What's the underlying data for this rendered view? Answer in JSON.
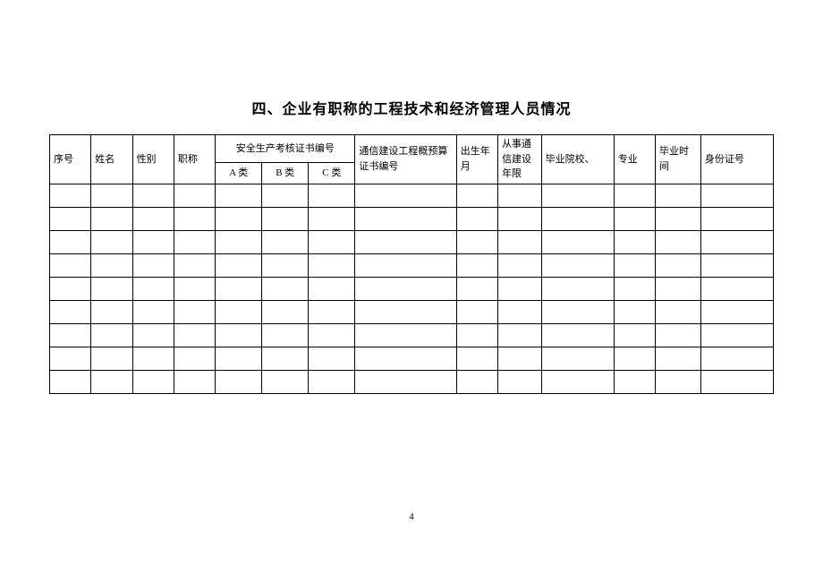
{
  "title": "四、企业有职称的工程技术和经济管理人员情况",
  "columns": {
    "seq": "序号",
    "name": "姓名",
    "gender": "性别",
    "title": "职称",
    "safety_group": "安全生产考核证书编号",
    "safety_a": "A 类",
    "safety_b": "B 类",
    "safety_c": "C 类",
    "budget_cert": "通信建设工程概预算证书编号",
    "birth": "出生年月",
    "work_years": "从事通信建设年限",
    "school": "毕业院校、",
    "major": "专业",
    "grad_time": "毕业时间",
    "id_number": "身份证号"
  },
  "rows": [
    {
      "seq": "",
      "name": "",
      "gender": "",
      "title": "",
      "safety_a": "",
      "safety_b": "",
      "safety_c": "",
      "budget_cert": "",
      "birth": "",
      "work_years": "",
      "school": "",
      "major": "",
      "grad_time": "",
      "id_number": ""
    },
    {
      "seq": "",
      "name": "",
      "gender": "",
      "title": "",
      "safety_a": "",
      "safety_b": "",
      "safety_c": "",
      "budget_cert": "",
      "birth": "",
      "work_years": "",
      "school": "",
      "major": "",
      "grad_time": "",
      "id_number": ""
    },
    {
      "seq": "",
      "name": "",
      "gender": "",
      "title": "",
      "safety_a": "",
      "safety_b": "",
      "safety_c": "",
      "budget_cert": "",
      "birth": "",
      "work_years": "",
      "school": "",
      "major": "",
      "grad_time": "",
      "id_number": ""
    },
    {
      "seq": "",
      "name": "",
      "gender": "",
      "title": "",
      "safety_a": "",
      "safety_b": "",
      "safety_c": "",
      "budget_cert": "",
      "birth": "",
      "work_years": "",
      "school": "",
      "major": "",
      "grad_time": "",
      "id_number": ""
    },
    {
      "seq": "",
      "name": "",
      "gender": "",
      "title": "",
      "safety_a": "",
      "safety_b": "",
      "safety_c": "",
      "budget_cert": "",
      "birth": "",
      "work_years": "",
      "school": "",
      "major": "",
      "grad_time": "",
      "id_number": ""
    },
    {
      "seq": "",
      "name": "",
      "gender": "",
      "title": "",
      "safety_a": "",
      "safety_b": "",
      "safety_c": "",
      "budget_cert": "",
      "birth": "",
      "work_years": "",
      "school": "",
      "major": "",
      "grad_time": "",
      "id_number": ""
    },
    {
      "seq": "",
      "name": "",
      "gender": "",
      "title": "",
      "safety_a": "",
      "safety_b": "",
      "safety_c": "",
      "budget_cert": "",
      "birth": "",
      "work_years": "",
      "school": "",
      "major": "",
      "grad_time": "",
      "id_number": ""
    },
    {
      "seq": "",
      "name": "",
      "gender": "",
      "title": "",
      "safety_a": "",
      "safety_b": "",
      "safety_c": "",
      "budget_cert": "",
      "birth": "",
      "work_years": "",
      "school": "",
      "major": "",
      "grad_time": "",
      "id_number": ""
    },
    {
      "seq": "",
      "name": "",
      "gender": "",
      "title": "",
      "safety_a": "",
      "safety_b": "",
      "safety_c": "",
      "budget_cert": "",
      "birth": "",
      "work_years": "",
      "school": "",
      "major": "",
      "grad_time": "",
      "id_number": ""
    }
  ],
  "page_number": "4",
  "styling": {
    "font_family": "SimSun",
    "title_fontsize": 16,
    "cell_fontsize": 11,
    "border_color": "#000000",
    "background_color": "#ffffff",
    "text_color": "#000000",
    "row_count": 9,
    "header_row_height": 28,
    "sub_header_row_height": 22,
    "data_row_height": 26
  }
}
